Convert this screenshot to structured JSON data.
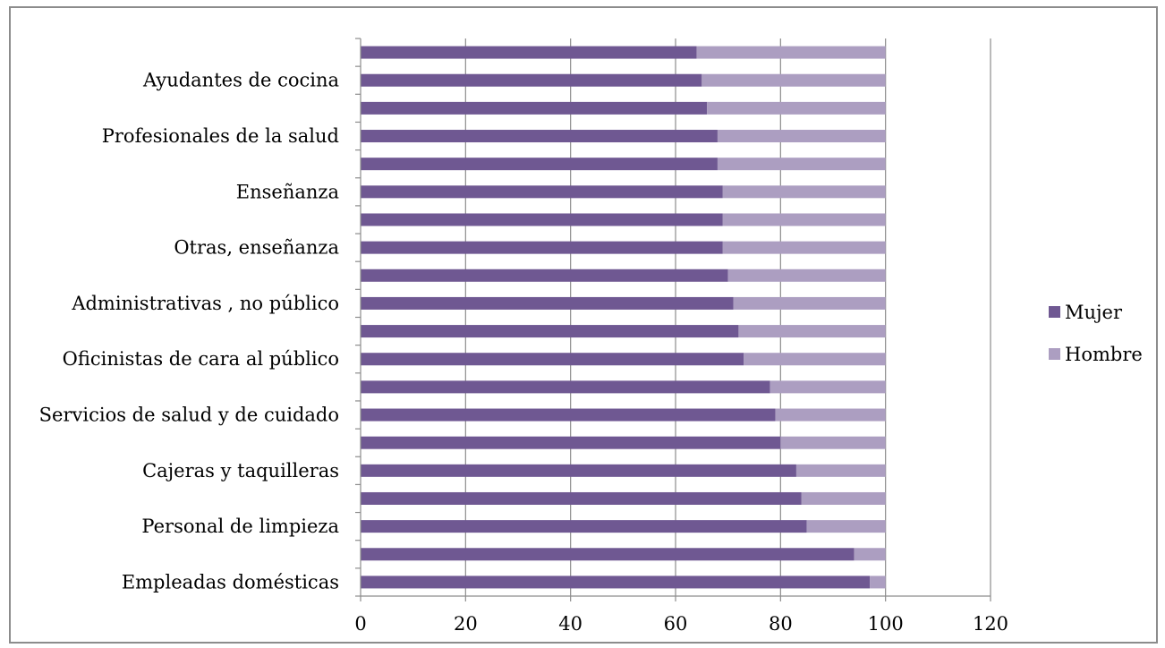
{
  "chart_data": {
    "type": "bar",
    "orientation": "horizontal",
    "stacked": true,
    "categories": [
      "Empleadas domésticas",
      "",
      "Personal de limpieza",
      "",
      "Cajeras y taquilleras",
      "",
      "Servicios de salud y de cuidado",
      "",
      "Oficinistas de cara al público",
      "",
      "Administrativas , no público",
      "",
      "Otras, enseñanza",
      "",
      "Enseñanza",
      "",
      "Profesionales de la salud",
      "",
      "Ayudantes de cocina",
      ""
    ],
    "series": [
      {
        "name": "Mujer",
        "color": "#6f5892",
        "values": [
          97,
          94,
          85,
          84,
          83,
          80,
          79,
          78,
          73,
          72,
          71,
          70,
          69,
          69,
          69,
          68,
          68,
          66,
          65,
          64
        ]
      },
      {
        "name": "Hombre",
        "color": "#ac9ec1",
        "values": [
          3,
          6,
          15,
          16,
          17,
          20,
          21,
          22,
          27,
          28,
          29,
          30,
          31,
          31,
          31,
          32,
          32,
          34,
          35,
          36
        ]
      }
    ],
    "xlim": [
      0,
      120
    ],
    "xticks": [
      0,
      20,
      40,
      60,
      80,
      100,
      120
    ],
    "xlabel": "",
    "ylabel": "",
    "grid": "vertical",
    "legend_position": "right"
  }
}
